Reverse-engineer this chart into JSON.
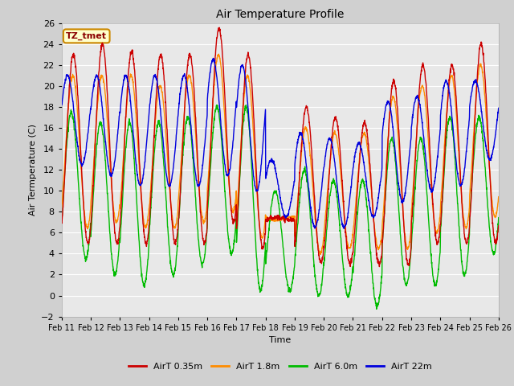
{
  "title": "Air Temperature Profile",
  "ylabel": "Air Termperature (C)",
  "xlabel": "Time",
  "annotation": "TZ_tmet",
  "ylim": [
    -2,
    26
  ],
  "yticks": [
    -2,
    0,
    2,
    4,
    6,
    8,
    10,
    12,
    14,
    16,
    18,
    20,
    22,
    24,
    26
  ],
  "xtick_labels": [
    "Feb 11",
    "Feb 12",
    "Feb 13",
    "Feb 14",
    "Feb 15",
    "Feb 16",
    "Feb 17",
    "Feb 18",
    "Feb 19",
    "Feb 20",
    "Feb 21",
    "Feb 22",
    "Feb 23",
    "Feb 24",
    "Feb 25",
    "Feb 26"
  ],
  "colors": {
    "AirT 0.35m": "#cc0000",
    "AirT 1.8m": "#ff8c00",
    "AirT 6.0m": "#00bb00",
    "AirT 22m": "#0000dd"
  },
  "fig_bg_color": "#d0d0d0",
  "plot_bg_color": "#e8e8e8",
  "grid_color": "#ffffff",
  "legend_labels": [
    "AirT 0.35m",
    "AirT 1.8m",
    "AirT 6.0m",
    "AirT 22m"
  ],
  "n_days": 15,
  "n_per_day": 144,
  "r_max": [
    23,
    24,
    23.3,
    23,
    23,
    25.5,
    23,
    7.5,
    18,
    17,
    16.5,
    20.5,
    22,
    22,
    24
  ],
  "r_min": [
    5,
    5,
    5,
    5,
    5,
    7,
    4.5,
    7.2,
    3.2,
    3,
    3,
    3,
    5,
    5,
    5
  ],
  "o_max": [
    21,
    21,
    21,
    20,
    21,
    23,
    21,
    7.2,
    16,
    15.5,
    15.5,
    19,
    20,
    21,
    22
  ],
  "o_min": [
    6.5,
    7,
    6.5,
    6.5,
    7,
    8,
    5.5,
    7.5,
    4,
    4.5,
    4.5,
    4.5,
    6,
    6.5,
    7.5
  ],
  "g_max": [
    17.5,
    16.5,
    16.5,
    16.5,
    17,
    18,
    18,
    10,
    12,
    11,
    11,
    15,
    15,
    17,
    17
  ],
  "g_min": [
    3.5,
    2,
    1,
    2,
    3,
    4,
    0.5,
    0.5,
    0,
    0,
    -1,
    1,
    1,
    2,
    4
  ],
  "b_max": [
    21,
    21,
    21,
    21,
    21,
    22.5,
    22,
    13,
    15.5,
    15,
    14.5,
    18.5,
    19,
    20.5,
    20.5
  ],
  "b_min": [
    12.5,
    11.5,
    10.5,
    10.5,
    10.5,
    11.5,
    10,
    7.5,
    6.5,
    6.5,
    7.5,
    9,
    10,
    10.5,
    13
  ],
  "r_seeds": [
    7,
    7
  ],
  "o_seeds": [
    8,
    8
  ],
  "g_seeds": [
    9,
    9
  ],
  "b_seeds": [
    10,
    10
  ]
}
